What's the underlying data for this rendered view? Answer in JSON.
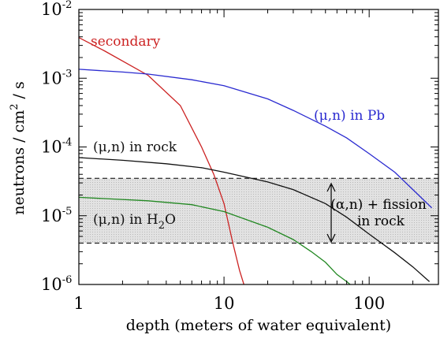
{
  "chart_data": {
    "type": "line",
    "x_scale": "log",
    "y_scale": "log",
    "xlim": [
      1,
      300
    ],
    "ylim": [
      1e-06,
      0.01
    ],
    "xlabel": "depth (meters of water equivalent)",
    "ylabel": {
      "pre": "neutrons / cm",
      "exp": "2",
      "post": " / s"
    },
    "x_ticks": [
      {
        "value": 1,
        "label": "1"
      },
      {
        "value": 10,
        "label": "10"
      },
      {
        "value": 100,
        "label": "100"
      }
    ],
    "y_ticks": [
      {
        "value": 1e-06,
        "base": "10",
        "exp": "-6"
      },
      {
        "value": 1e-05,
        "base": "10",
        "exp": "-5"
      },
      {
        "value": 0.0001,
        "base": "10",
        "exp": "-4"
      },
      {
        "value": 0.001,
        "base": "10",
        "exp": "-3"
      },
      {
        "value": 0.01,
        "base": "10",
        "exp": "-2"
      }
    ],
    "series": [
      {
        "name": "secondary",
        "color": "#cc2222",
        "points": [
          [
            1,
            0.0039
          ],
          [
            1.5,
            0.0025
          ],
          [
            3,
            0.0011
          ],
          [
            5,
            0.0004
          ],
          [
            7,
            0.0001
          ],
          [
            8.5,
            4e-05
          ],
          [
            10,
            1.5e-05
          ],
          [
            11.5,
            4e-06
          ],
          [
            12.8,
            1.6e-06
          ],
          [
            13.7,
            1e-06
          ]
        ]
      },
      {
        "name": "(μ,n) in Pb",
        "color": "#2a2ad0",
        "points": [
          [
            1,
            0.00135
          ],
          [
            2,
            0.00123
          ],
          [
            3,
            0.00115
          ],
          [
            6,
            0.00095
          ],
          [
            10,
            0.00078
          ],
          [
            20,
            0.0005
          ],
          [
            30,
            0.00034
          ],
          [
            50,
            0.0002
          ],
          [
            70,
            0.000135
          ],
          [
            100,
            8e-05
          ],
          [
            150,
            4.3e-05
          ],
          [
            200,
            2.4e-05
          ],
          [
            270,
            1.3e-05
          ]
        ]
      },
      {
        "name": "(μ,n) in rock",
        "color": "#111111",
        "points": [
          [
            1,
            7e-05
          ],
          [
            2,
            6.4e-05
          ],
          [
            4,
            5.7e-05
          ],
          [
            7,
            5e-05
          ],
          [
            10,
            4.3e-05
          ],
          [
            20,
            3.1e-05
          ],
          [
            30,
            2.4e-05
          ],
          [
            50,
            1.5e-05
          ],
          [
            70,
            9.5e-06
          ],
          [
            100,
            5.4e-06
          ],
          [
            150,
            2.9e-06
          ],
          [
            200,
            1.8e-06
          ],
          [
            260,
            1.1e-06
          ]
        ]
      },
      {
        "name": "(μ,n) in H2O",
        "color": "#228822",
        "points": [
          [
            1,
            1.85e-05
          ],
          [
            3,
            1.65e-05
          ],
          [
            6,
            1.45e-05
          ],
          [
            10,
            1.15e-05
          ],
          [
            20,
            6.8e-06
          ],
          [
            30,
            4.5e-06
          ],
          [
            40,
            3e-06
          ],
          [
            50,
            2.1e-06
          ],
          [
            60,
            1.4e-06
          ],
          [
            70,
            1.1e-06
          ],
          [
            74,
            1e-06
          ]
        ]
      }
    ],
    "band": {
      "y_low": 4e-06,
      "y_high": 3.5e-05,
      "label_line1": "(α,n) + fission",
      "label_line2": "in rock"
    },
    "labels": {
      "secondary": "secondary",
      "pb": "(μ,n) in Pb",
      "rock": "(μ,n) in rock",
      "h2o_pre": "(μ,n) in H",
      "h2o_sub": "2",
      "h2o_post": "O"
    },
    "grid": false,
    "legend": "none"
  }
}
